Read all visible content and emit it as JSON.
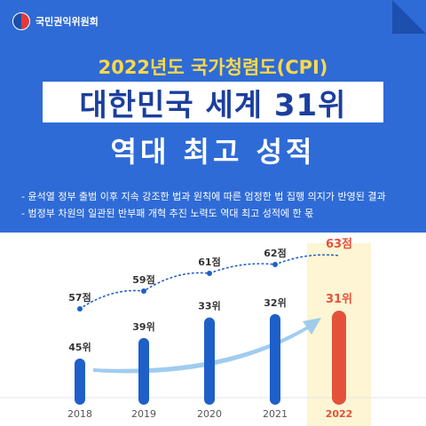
{
  "header": {
    "org_name": "국민권익위원회",
    "subtitle": "2022년도 국가청렴도(CPI)",
    "title": "대한민국 세계 31위",
    "title2": "역대 최고 성적"
  },
  "bullets": [
    "- 윤석열 정부 출범 이후 지속 강조한 법과 원칙에 따른 엄정한 법 집행 의지가 반영된 결과",
    "- 범정부 차원의 일관된 반부패 개혁 추진 노력도 역대 최고 성적에 한 몫"
  ],
  "chart_data": {
    "type": "bar",
    "categories": [
      "2018",
      "2019",
      "2020",
      "2021",
      "2022"
    ],
    "series": [
      {
        "values": [
          45,
          39,
          33,
          32,
          31
        ],
        "labels": [
          "45위",
          "39위",
          "33위",
          "32위",
          "31위"
        ]
      },
      {
        "values": [
          57,
          59,
          61,
          62,
          63
        ],
        "labels": [
          "57점",
          "59점",
          "61점",
          "62점",
          "63점"
        ]
      }
    ],
    "highlight": "2022",
    "colors": {
      "bar": "#1f5fc9",
      "highlight_bar": "#e4513b",
      "highlight_bg": "#fdf5d3",
      "line": "#1f5fc9",
      "arrow": "#8fc3ec",
      "score_highlight": "#e4513b"
    }
  }
}
